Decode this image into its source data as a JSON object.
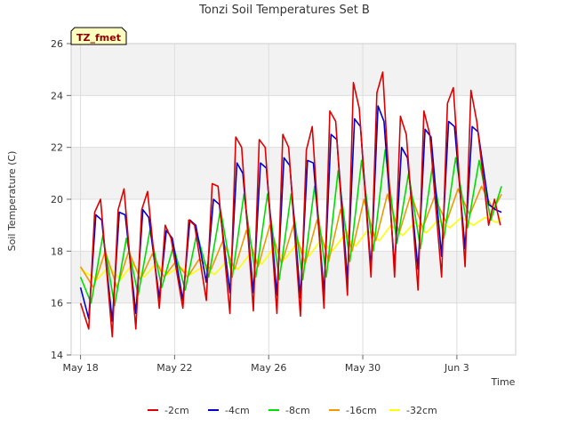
{
  "chart_data": {
    "type": "line",
    "title": "Tonzi Soil Temperatures Set B",
    "xlabel": "Time",
    "ylabel": "Soil Temperature (C)",
    "badge": "TZ_fmet",
    "x_unit": "days since May 18",
    "xlim": [
      -0.4,
      18.5
    ],
    "ylim": [
      14,
      26
    ],
    "y_ticks": [
      14,
      16,
      18,
      20,
      22,
      24,
      26
    ],
    "x_ticks": [
      {
        "value": 0,
        "label": "May 18"
      },
      {
        "value": 4,
        "label": "May 22"
      },
      {
        "value": 8,
        "label": "May 26"
      },
      {
        "value": 12,
        "label": "May 30"
      },
      {
        "value": 16,
        "label": "Jun 3"
      }
    ],
    "grid": true,
    "banded_background": true,
    "legend_position": "bottom",
    "series": [
      {
        "name": "-2cm",
        "color": "#dd0000",
        "x": [
          0.0,
          0.35,
          0.6,
          0.85,
          1.35,
          1.6,
          1.85,
          2.35,
          2.6,
          2.85,
          3.35,
          3.6,
          3.85,
          4.35,
          4.6,
          4.85,
          5.35,
          5.6,
          5.85,
          6.35,
          6.6,
          6.85,
          7.35,
          7.6,
          7.85,
          8.35,
          8.6,
          8.85,
          9.35,
          9.6,
          9.85,
          10.35,
          10.6,
          10.85,
          11.35,
          11.6,
          11.85,
          12.35,
          12.6,
          12.85,
          13.35,
          13.6,
          13.85,
          14.35,
          14.6,
          14.85,
          15.35,
          15.6,
          15.85,
          16.35,
          16.6,
          16.85,
          17.35,
          17.6,
          17.85
        ],
        "y": [
          16.0,
          15.0,
          19.5,
          20.0,
          14.7,
          19.6,
          20.4,
          15.0,
          19.6,
          20.3,
          15.8,
          19.0,
          18.5,
          15.8,
          19.2,
          19.0,
          16.1,
          20.6,
          20.5,
          15.6,
          22.4,
          22.0,
          15.7,
          22.3,
          22.0,
          15.6,
          22.5,
          22.0,
          15.5,
          21.9,
          22.8,
          15.8,
          23.4,
          23.0,
          16.3,
          24.5,
          23.5,
          17.0,
          24.1,
          24.9,
          17.0,
          23.2,
          22.5,
          16.5,
          23.4,
          22.5,
          17.0,
          23.7,
          24.3,
          17.4,
          24.2,
          23.0,
          19.0,
          20.0,
          19.0
        ]
      },
      {
        "name": "-4cm",
        "color": "#0000cc",
        "x": [
          0.0,
          0.35,
          0.65,
          0.9,
          1.35,
          1.65,
          1.9,
          2.35,
          2.65,
          2.9,
          3.35,
          3.65,
          3.9,
          4.35,
          4.65,
          4.9,
          5.35,
          5.65,
          5.9,
          6.35,
          6.65,
          6.9,
          7.35,
          7.65,
          7.9,
          8.35,
          8.65,
          8.9,
          9.35,
          9.65,
          9.9,
          10.35,
          10.65,
          10.9,
          11.35,
          11.65,
          11.9,
          12.35,
          12.65,
          12.9,
          13.35,
          13.65,
          13.9,
          14.35,
          14.65,
          14.9,
          15.35,
          15.65,
          15.9,
          16.35,
          16.65,
          16.9,
          17.35,
          17.65,
          17.9
        ],
        "y": [
          16.6,
          15.4,
          19.4,
          19.2,
          15.3,
          19.5,
          19.4,
          15.6,
          19.6,
          19.3,
          16.2,
          18.8,
          18.5,
          16.1,
          19.2,
          19.0,
          16.8,
          20.0,
          19.8,
          16.4,
          21.4,
          21.0,
          16.4,
          21.4,
          21.2,
          16.3,
          21.6,
          21.3,
          16.2,
          21.5,
          21.4,
          16.4,
          22.5,
          22.3,
          16.9,
          23.1,
          22.8,
          17.3,
          23.6,
          23.0,
          17.4,
          22.0,
          21.6,
          17.3,
          22.7,
          22.4,
          17.8,
          23.0,
          22.8,
          18.1,
          22.8,
          22.6,
          19.8,
          19.6,
          19.5
        ]
      },
      {
        "name": "-8cm",
        "color": "#00dd00",
        "x": [
          0.0,
          0.45,
          0.95,
          1.45,
          1.95,
          2.45,
          2.95,
          3.45,
          3.95,
          4.45,
          4.95,
          5.45,
          5.95,
          6.45,
          6.95,
          7.45,
          7.95,
          8.45,
          8.95,
          9.45,
          9.95,
          10.45,
          10.95,
          11.45,
          11.95,
          12.45,
          12.95,
          13.45,
          13.95,
          14.45,
          14.95,
          15.45,
          15.95,
          16.45,
          16.95,
          17.45,
          17.9
        ],
        "y": [
          17.0,
          16.0,
          18.6,
          15.9,
          18.5,
          16.3,
          18.8,
          16.6,
          18.2,
          16.5,
          18.7,
          17.0,
          19.6,
          17.0,
          20.2,
          17.0,
          20.2,
          16.9,
          20.2,
          16.9,
          20.5,
          17.0,
          21.1,
          17.6,
          21.5,
          18.0,
          21.9,
          18.3,
          21.0,
          18.1,
          21.2,
          18.5,
          21.6,
          18.9,
          21.5,
          19.2,
          20.5
        ]
      },
      {
        "name": "-16cm",
        "color": "#ee9900",
        "x": [
          0.0,
          0.55,
          1.05,
          1.55,
          2.05,
          2.55,
          3.05,
          3.55,
          4.05,
          4.55,
          5.05,
          5.55,
          6.05,
          6.55,
          7.05,
          7.55,
          8.05,
          8.55,
          9.05,
          9.55,
          10.05,
          10.55,
          11.05,
          11.55,
          12.05,
          12.55,
          13.05,
          13.55,
          14.05,
          14.55,
          15.05,
          15.55,
          16.05,
          16.55,
          17.05,
          17.55,
          17.9
        ],
        "y": [
          17.4,
          16.6,
          18.0,
          16.6,
          18.0,
          16.9,
          17.9,
          17.0,
          17.6,
          17.0,
          17.7,
          17.3,
          18.4,
          17.3,
          18.8,
          17.4,
          19.0,
          17.5,
          19.0,
          17.5,
          19.2,
          17.6,
          19.6,
          18.0,
          20.0,
          18.4,
          20.2,
          18.7,
          20.2,
          18.9,
          20.1,
          19.1,
          20.4,
          19.4,
          20.5,
          19.6,
          20.2
        ]
      },
      {
        "name": "-32cm",
        "color": "#ffff00",
        "x": [
          0.0,
          0.7,
          1.2,
          1.7,
          2.2,
          2.7,
          3.2,
          3.7,
          4.2,
          4.7,
          5.2,
          5.7,
          6.2,
          6.7,
          7.2,
          7.7,
          8.2,
          8.7,
          9.2,
          9.7,
          10.2,
          10.7,
          11.2,
          11.7,
          12.2,
          12.7,
          13.2,
          13.7,
          14.2,
          14.7,
          15.2,
          15.7,
          16.2,
          16.7,
          17.2,
          17.7,
          17.9
        ],
        "y": [
          17.3,
          16.9,
          17.4,
          16.9,
          17.5,
          17.0,
          17.5,
          17.1,
          17.4,
          17.1,
          17.4,
          17.1,
          17.6,
          17.3,
          17.9,
          17.5,
          18.1,
          17.7,
          18.3,
          17.8,
          18.4,
          18.0,
          18.6,
          18.2,
          18.8,
          18.4,
          19.0,
          18.6,
          19.1,
          18.7,
          19.2,
          18.9,
          19.3,
          19.0,
          19.3,
          19.1,
          19.3
        ]
      }
    ]
  }
}
